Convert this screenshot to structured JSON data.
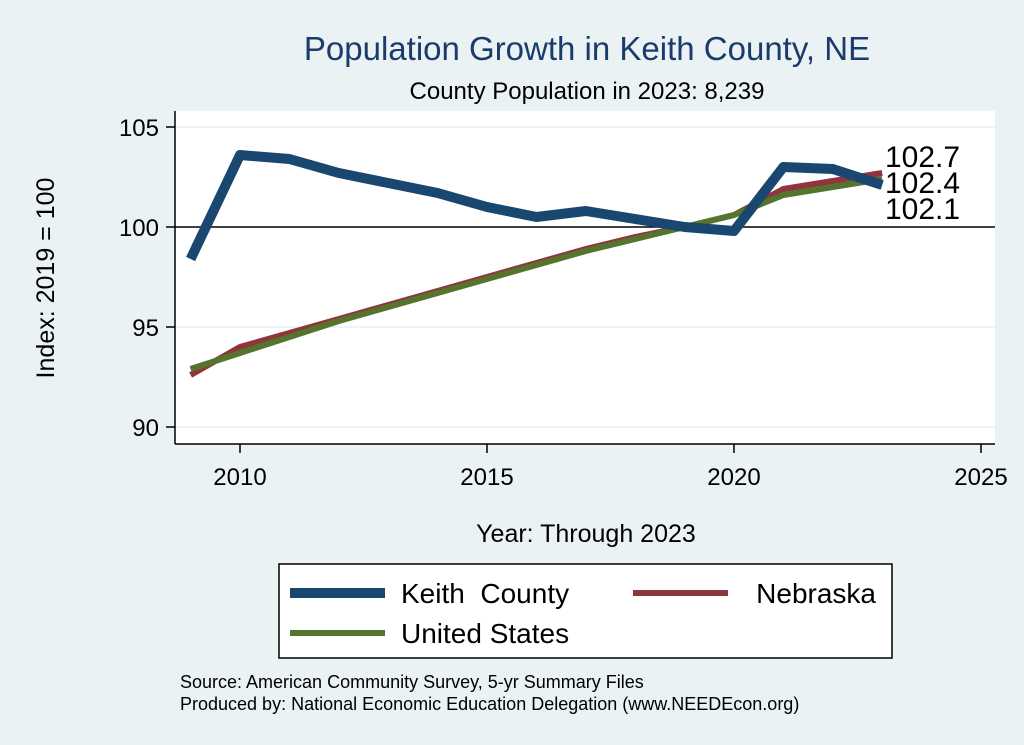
{
  "chart_data": {
    "type": "line",
    "title": "Population Growth in Keith County, NE",
    "subtitle": "County Population in 2023: 8,239",
    "xlabel": "Year: Through 2023",
    "ylabel": "Index: 2019 = 100",
    "xlim": [
      2009,
      2025
    ],
    "ylim": [
      90,
      105
    ],
    "x_ticks": [
      2010,
      2015,
      2020,
      2025
    ],
    "y_ticks": [
      90,
      95,
      100,
      105
    ],
    "reference_line": 100,
    "legend_position": "bottom",
    "x": [
      2009,
      2010,
      2011,
      2012,
      2013,
      2014,
      2015,
      2016,
      2017,
      2018,
      2019,
      2020,
      2021,
      2022,
      2023
    ],
    "series": [
      {
        "name": "Keith  County",
        "color": "#1a476f",
        "values": [
          98.4,
          103.6,
          103.4,
          102.7,
          102.2,
          101.7,
          101.0,
          100.5,
          100.8,
          100.4,
          100.0,
          99.8,
          103.0,
          102.9,
          102.1
        ],
        "end_label": "102.1"
      },
      {
        "name": "Nebraska",
        "color": "#90353b",
        "values": [
          92.6,
          94.0,
          94.7,
          95.4,
          96.1,
          96.8,
          97.5,
          98.2,
          98.9,
          99.5,
          100.0,
          100.6,
          101.9,
          102.3,
          102.7
        ],
        "end_label": "102.7"
      },
      {
        "name": "United States",
        "color": "#55752f",
        "values": [
          92.9,
          93.7,
          94.5,
          95.3,
          96.0,
          96.7,
          97.4,
          98.1,
          98.8,
          99.4,
          100.0,
          100.6,
          101.6,
          102.0,
          102.4
        ],
        "end_label": "102.4"
      }
    ]
  },
  "source_note": "Source: American Community Survey, 5-yr Summary Files",
  "producer_note": "Produced by: National Economic Education Delegation (www.NEEDEcon.org)"
}
